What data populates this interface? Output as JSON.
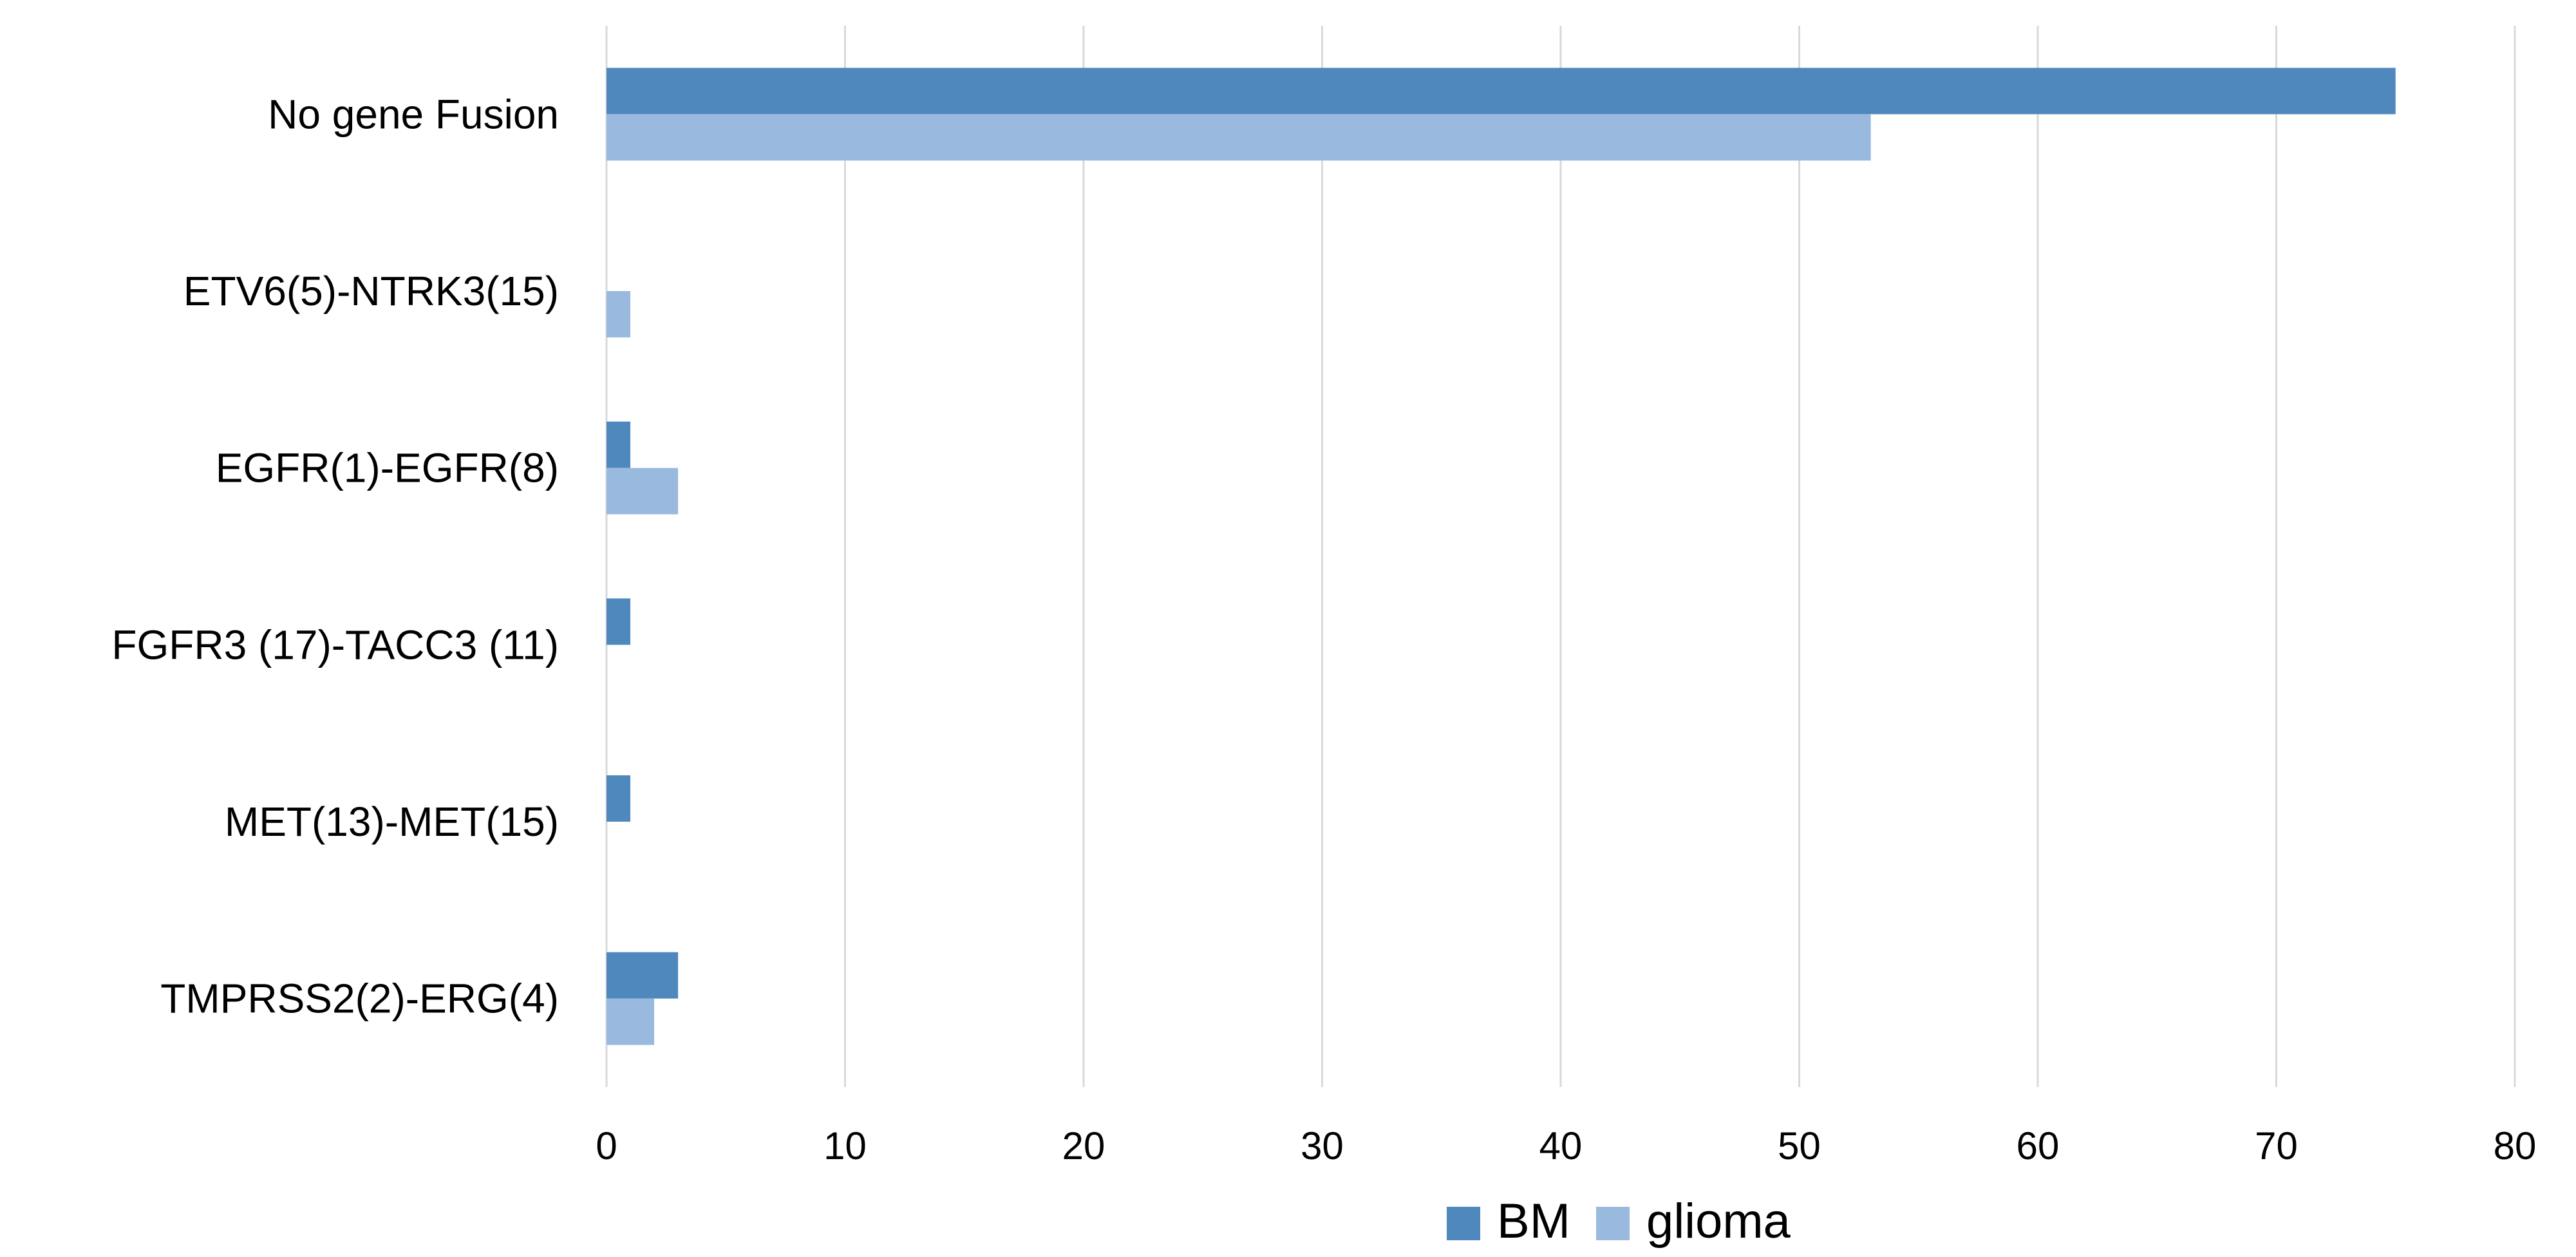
{
  "chart_data": {
    "type": "bar",
    "orientation": "horizontal",
    "categories": [
      "No gene Fusion",
      "ETV6(5)-NTRK3(15)",
      "EGFR(1)-EGFR(8)",
      "FGFR3 (17)-TACC3 (11)",
      "MET(13)-MET(15)",
      "TMPRSS2(2)-ERG(4)"
    ],
    "series": [
      {
        "name": "BM",
        "color": "#4f88bd",
        "values": [
          75,
          0,
          1,
          1,
          1,
          3
        ]
      },
      {
        "name": "glioma",
        "color": "#9ab9df",
        "values": [
          53,
          1,
          3,
          0,
          0,
          2
        ]
      }
    ],
    "title": "",
    "xlabel": "",
    "ylabel": "",
    "xlim": [
      0,
      80
    ],
    "xticks": [
      0,
      10,
      20,
      30,
      40,
      50,
      60,
      70,
      80
    ],
    "grid": "vertical",
    "gridColor": "#d9d9d9",
    "legend": "bottom-center"
  }
}
